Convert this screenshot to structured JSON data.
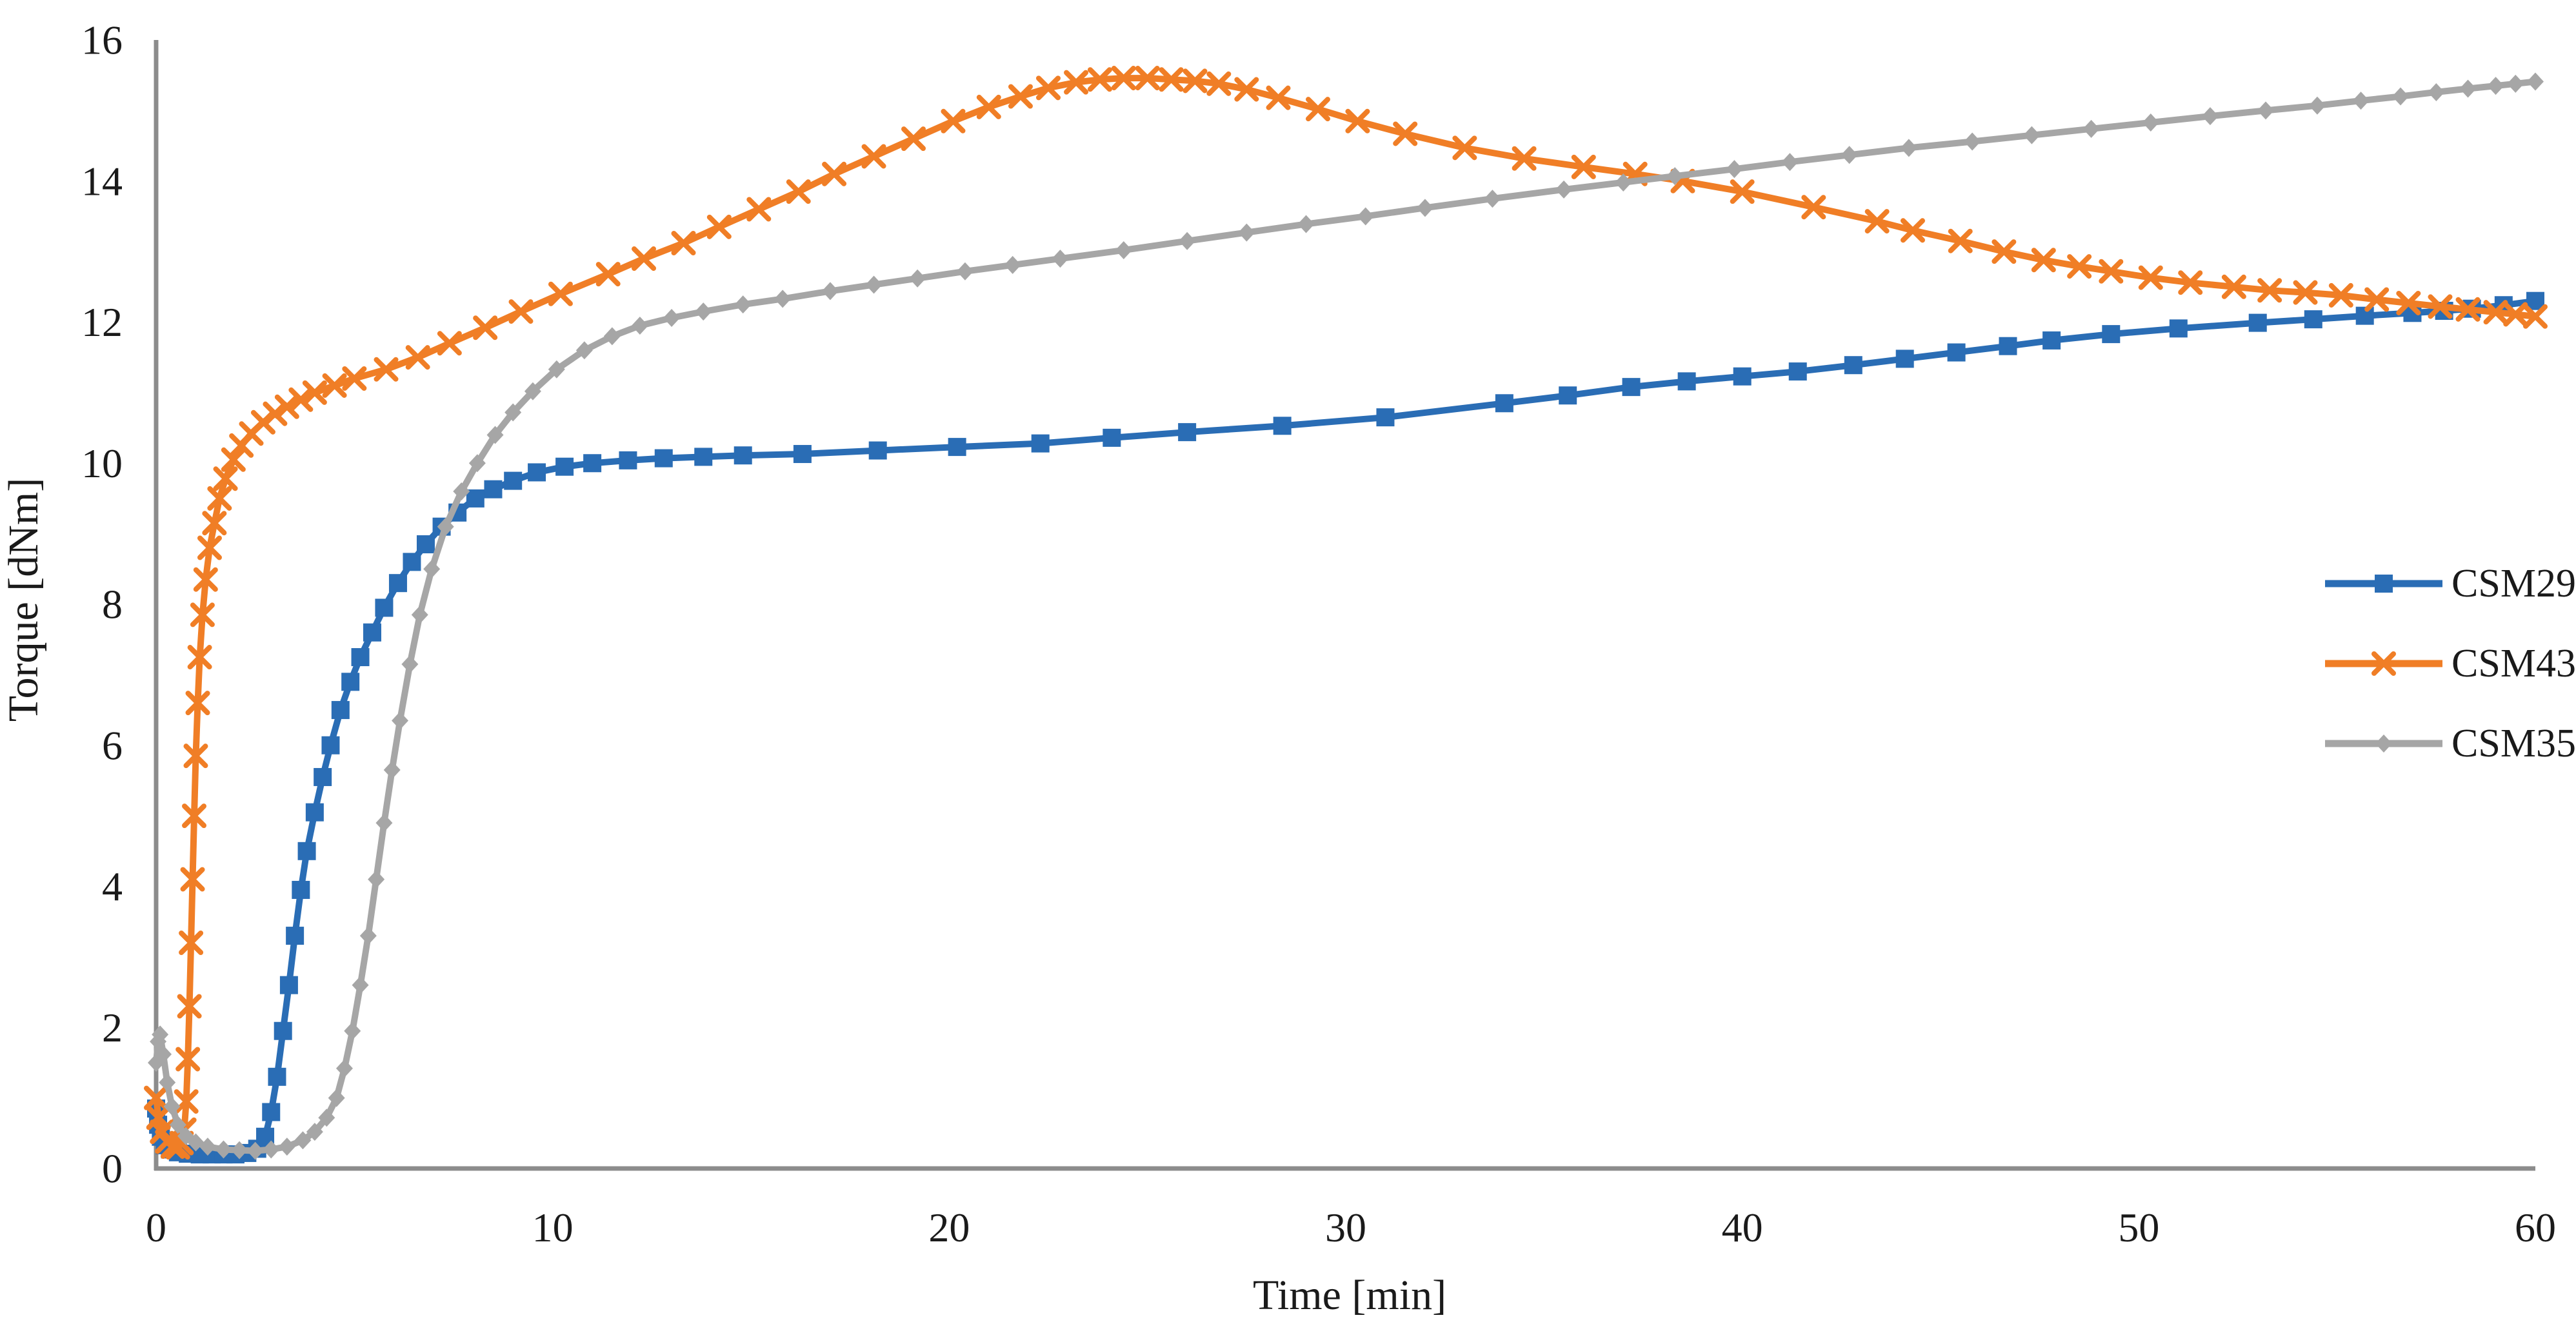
{
  "figure": {
    "background": "#ffffff",
    "axis_color": "#8c8c8c",
    "text_color": "#1a1a1a"
  },
  "chart_data": {
    "type": "line",
    "title": "",
    "xlabel": "Time [min]",
    "ylabel": "Torque [dNm]",
    "grid": false,
    "legend_position": "right-middle",
    "x_axis": {
      "min": 0,
      "max": 60,
      "ticks": [
        0,
        10,
        20,
        30,
        40,
        50,
        60
      ]
    },
    "y_axis": {
      "min": 0,
      "max": 16,
      "ticks": [
        0,
        2,
        4,
        6,
        8,
        10,
        12,
        14,
        16
      ]
    },
    "series": [
      {
        "name": "CSM29",
        "color": "#2a6db5",
        "marker": "square",
        "points": [
          [
            0,
            0.85
          ],
          [
            0.05,
            0.62
          ],
          [
            0.12,
            0.45
          ],
          [
            0.22,
            0.33
          ],
          [
            0.35,
            0.27
          ],
          [
            0.55,
            0.23
          ],
          [
            0.8,
            0.21
          ],
          [
            1.1,
            0.2
          ],
          [
            1.4,
            0.2
          ],
          [
            1.7,
            0.2
          ],
          [
            2.0,
            0.2
          ],
          [
            2.3,
            0.22
          ],
          [
            2.55,
            0.28
          ],
          [
            2.75,
            0.45
          ],
          [
            2.9,
            0.8
          ],
          [
            3.05,
            1.3
          ],
          [
            3.2,
            1.95
          ],
          [
            3.35,
            2.6
          ],
          [
            3.5,
            3.3
          ],
          [
            3.65,
            3.95
          ],
          [
            3.8,
            4.5
          ],
          [
            4.0,
            5.05
          ],
          [
            4.2,
            5.55
          ],
          [
            4.4,
            6.0
          ],
          [
            4.65,
            6.5
          ],
          [
            4.9,
            6.9
          ],
          [
            5.15,
            7.25
          ],
          [
            5.45,
            7.6
          ],
          [
            5.75,
            7.95
          ],
          [
            6.1,
            8.3
          ],
          [
            6.45,
            8.6
          ],
          [
            6.8,
            8.85
          ],
          [
            7.2,
            9.1
          ],
          [
            7.6,
            9.3
          ],
          [
            8.05,
            9.5
          ],
          [
            8.5,
            9.63
          ],
          [
            9.0,
            9.75
          ],
          [
            9.6,
            9.87
          ],
          [
            10.3,
            9.95
          ],
          [
            11.0,
            10.0
          ],
          [
            11.9,
            10.04
          ],
          [
            12.8,
            10.07
          ],
          [
            13.8,
            10.09
          ],
          [
            14.8,
            10.11
          ],
          [
            16.3,
            10.13
          ],
          [
            18.2,
            10.18
          ],
          [
            20.2,
            10.23
          ],
          [
            22.3,
            10.28
          ],
          [
            24.1,
            10.36
          ],
          [
            26.0,
            10.44
          ],
          [
            28.4,
            10.53
          ],
          [
            31.0,
            10.65
          ],
          [
            34.0,
            10.85
          ],
          [
            35.6,
            10.96
          ],
          [
            37.2,
            11.08
          ],
          [
            38.6,
            11.16
          ],
          [
            40.0,
            11.23
          ],
          [
            41.4,
            11.3
          ],
          [
            42.8,
            11.39
          ],
          [
            44.1,
            11.48
          ],
          [
            45.4,
            11.57
          ],
          [
            46.7,
            11.66
          ],
          [
            47.8,
            11.74
          ],
          [
            49.3,
            11.83
          ],
          [
            51.0,
            11.91
          ],
          [
            53.0,
            11.99
          ],
          [
            54.4,
            12.04
          ],
          [
            55.7,
            12.09
          ],
          [
            56.9,
            12.13
          ],
          [
            57.7,
            12.16
          ],
          [
            58.4,
            12.19
          ],
          [
            59.2,
            12.24
          ],
          [
            60,
            12.3
          ]
        ]
      },
      {
        "name": "CSM43",
        "color": "#f07e26",
        "marker": "x",
        "points": [
          [
            0,
            1.0
          ],
          [
            0.06,
            0.72
          ],
          [
            0.15,
            0.52
          ],
          [
            0.28,
            0.38
          ],
          [
            0.42,
            0.31
          ],
          [
            0.55,
            0.3
          ],
          [
            0.64,
            0.36
          ],
          [
            0.71,
            0.55
          ],
          [
            0.76,
            0.95
          ],
          [
            0.8,
            1.55
          ],
          [
            0.84,
            2.3
          ],
          [
            0.88,
            3.2
          ],
          [
            0.92,
            4.1
          ],
          [
            0.96,
            5.0
          ],
          [
            1.0,
            5.85
          ],
          [
            1.05,
            6.6
          ],
          [
            1.1,
            7.25
          ],
          [
            1.17,
            7.85
          ],
          [
            1.25,
            8.35
          ],
          [
            1.35,
            8.8
          ],
          [
            1.47,
            9.15
          ],
          [
            1.6,
            9.5
          ],
          [
            1.75,
            9.78
          ],
          [
            1.95,
            10.05
          ],
          [
            2.15,
            10.25
          ],
          [
            2.4,
            10.42
          ],
          [
            2.7,
            10.58
          ],
          [
            3.0,
            10.7
          ],
          [
            3.3,
            10.8
          ],
          [
            3.65,
            10.9
          ],
          [
            4.0,
            11.0
          ],
          [
            4.5,
            11.1
          ],
          [
            5.0,
            11.2
          ],
          [
            5.8,
            11.33
          ],
          [
            6.6,
            11.5
          ],
          [
            7.4,
            11.7
          ],
          [
            8.3,
            11.92
          ],
          [
            9.2,
            12.15
          ],
          [
            10.2,
            12.4
          ],
          [
            11.4,
            12.68
          ],
          [
            12.3,
            12.9
          ],
          [
            13.3,
            13.12
          ],
          [
            14.2,
            13.35
          ],
          [
            15.2,
            13.6
          ],
          [
            16.2,
            13.85
          ],
          [
            17.1,
            14.1
          ],
          [
            18.1,
            14.35
          ],
          [
            19.1,
            14.6
          ],
          [
            20.1,
            14.85
          ],
          [
            21.0,
            15.05
          ],
          [
            21.8,
            15.2
          ],
          [
            22.5,
            15.32
          ],
          [
            23.2,
            15.4
          ],
          [
            23.8,
            15.44
          ],
          [
            24.4,
            15.46
          ],
          [
            25.0,
            15.46
          ],
          [
            25.6,
            15.44
          ],
          [
            26.2,
            15.42
          ],
          [
            26.8,
            15.38
          ],
          [
            27.5,
            15.3
          ],
          [
            28.3,
            15.18
          ],
          [
            29.3,
            15.02
          ],
          [
            30.3,
            14.85
          ],
          [
            31.5,
            14.67
          ],
          [
            33.0,
            14.47
          ],
          [
            34.5,
            14.32
          ],
          [
            36.0,
            14.2
          ],
          [
            37.3,
            14.1
          ],
          [
            38.5,
            14.0
          ],
          [
            40.0,
            13.85
          ],
          [
            41.8,
            13.63
          ],
          [
            43.4,
            13.43
          ],
          [
            44.3,
            13.3
          ],
          [
            45.5,
            13.15
          ],
          [
            46.6,
            13.0
          ],
          [
            47.6,
            12.88
          ],
          [
            48.5,
            12.79
          ],
          [
            49.3,
            12.72
          ],
          [
            50.3,
            12.63
          ],
          [
            51.3,
            12.56
          ],
          [
            52.4,
            12.5
          ],
          [
            53.3,
            12.45
          ],
          [
            54.2,
            12.42
          ],
          [
            55.1,
            12.38
          ],
          [
            56.0,
            12.32
          ],
          [
            56.8,
            12.27
          ],
          [
            57.6,
            12.22
          ],
          [
            58.3,
            12.18
          ],
          [
            59.0,
            12.14
          ],
          [
            59.5,
            12.11
          ],
          [
            60,
            12.08
          ]
        ]
      },
      {
        "name": "CSM35",
        "color": "#a6a6a6",
        "marker": "diamond",
        "points": [
          [
            0,
            1.5
          ],
          [
            0.05,
            1.8
          ],
          [
            0.1,
            1.9
          ],
          [
            0.18,
            1.62
          ],
          [
            0.28,
            1.22
          ],
          [
            0.4,
            0.88
          ],
          [
            0.55,
            0.62
          ],
          [
            0.75,
            0.46
          ],
          [
            1.0,
            0.37
          ],
          [
            1.3,
            0.31
          ],
          [
            1.7,
            0.27
          ],
          [
            2.1,
            0.26
          ],
          [
            2.5,
            0.25
          ],
          [
            2.9,
            0.27
          ],
          [
            3.3,
            0.31
          ],
          [
            3.7,
            0.4
          ],
          [
            4.0,
            0.52
          ],
          [
            4.3,
            0.72
          ],
          [
            4.55,
            1.0
          ],
          [
            4.75,
            1.42
          ],
          [
            4.95,
            1.95
          ],
          [
            5.15,
            2.6
          ],
          [
            5.35,
            3.3
          ],
          [
            5.55,
            4.1
          ],
          [
            5.75,
            4.9
          ],
          [
            5.95,
            5.65
          ],
          [
            6.15,
            6.35
          ],
          [
            6.4,
            7.15
          ],
          [
            6.65,
            7.85
          ],
          [
            6.95,
            8.5
          ],
          [
            7.3,
            9.1
          ],
          [
            7.7,
            9.6
          ],
          [
            8.1,
            10.0
          ],
          [
            8.55,
            10.4
          ],
          [
            9.0,
            10.72
          ],
          [
            9.5,
            11.02
          ],
          [
            10.1,
            11.33
          ],
          [
            10.8,
            11.6
          ],
          [
            11.5,
            11.8
          ],
          [
            12.2,
            11.95
          ],
          [
            13.0,
            12.06
          ],
          [
            13.8,
            12.15
          ],
          [
            14.8,
            12.25
          ],
          [
            15.8,
            12.33
          ],
          [
            17.0,
            12.44
          ],
          [
            18.1,
            12.53
          ],
          [
            19.2,
            12.62
          ],
          [
            20.4,
            12.72
          ],
          [
            21.6,
            12.81
          ],
          [
            22.8,
            12.9
          ],
          [
            24.4,
            13.02
          ],
          [
            26.0,
            13.15
          ],
          [
            27.5,
            13.27
          ],
          [
            29.0,
            13.39
          ],
          [
            30.5,
            13.5
          ],
          [
            32.0,
            13.62
          ],
          [
            33.7,
            13.75
          ],
          [
            35.5,
            13.88
          ],
          [
            37.0,
            13.98
          ],
          [
            38.3,
            14.07
          ],
          [
            39.8,
            14.17
          ],
          [
            41.2,
            14.27
          ],
          [
            42.7,
            14.37
          ],
          [
            44.2,
            14.47
          ],
          [
            45.8,
            14.56
          ],
          [
            47.3,
            14.65
          ],
          [
            48.8,
            14.74
          ],
          [
            50.3,
            14.83
          ],
          [
            51.8,
            14.92
          ],
          [
            53.2,
            15.0
          ],
          [
            54.5,
            15.07
          ],
          [
            55.6,
            15.14
          ],
          [
            56.6,
            15.2
          ],
          [
            57.5,
            15.26
          ],
          [
            58.3,
            15.31
          ],
          [
            59.0,
            15.35
          ],
          [
            59.5,
            15.38
          ],
          [
            60,
            15.41
          ]
        ]
      }
    ]
  }
}
